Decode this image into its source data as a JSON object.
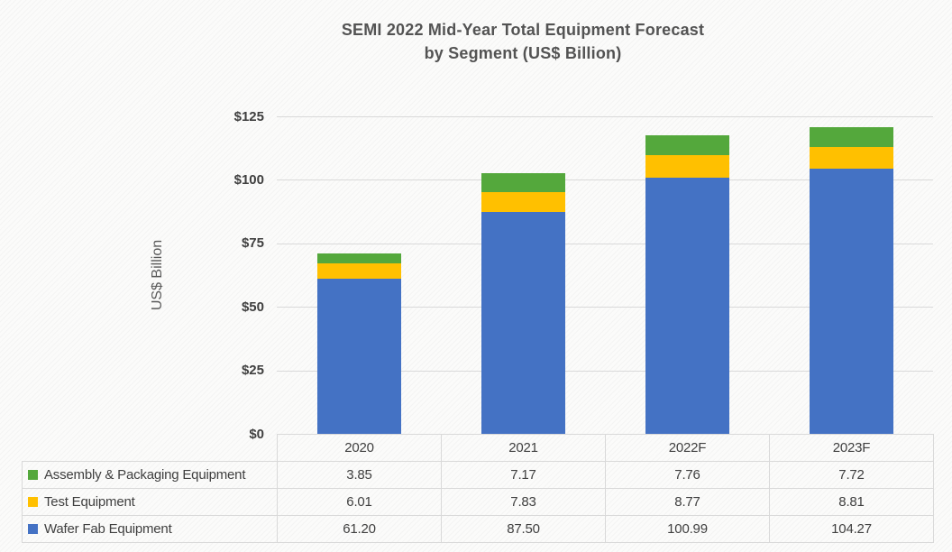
{
  "chart": {
    "title_lines": [
      "SEMI 2022 Mid-Year Total Equipment Forecast",
      "by Segment (US$ Billion)"
    ],
    "ylabel": "US$ Billion"
  },
  "chart_data": {
    "type": "bar",
    "stacked": true,
    "title": "SEMI 2022 Mid-Year Total Equipment Forecast by Segment (US$ Billion)",
    "xlabel": "",
    "ylabel": "US$ Billion",
    "categories": [
      "2020",
      "2021",
      "2022F",
      "2023F"
    ],
    "series": [
      {
        "name": "Assembly & Packaging Equipment",
        "color": "#54a83c",
        "values": [
          3.85,
          7.17,
          7.76,
          7.72
        ],
        "labels": [
          "3.85",
          "7.17",
          "7.76",
          "7.72"
        ]
      },
      {
        "name": "Test Equipment",
        "color": "#ffc000",
        "values": [
          6.01,
          7.83,
          8.77,
          8.81
        ],
        "labels": [
          "6.01",
          "7.83",
          "8.77",
          "8.81"
        ]
      },
      {
        "name": "Wafer Fab Equipment",
        "color": "#4472c4",
        "values": [
          61.2,
          87.5,
          100.99,
          104.27
        ],
        "labels": [
          "61.20",
          "87.50",
          "100.99",
          "104.27"
        ]
      }
    ],
    "stack_order_bottom_to_top": [
      "Wafer Fab Equipment",
      "Test Equipment",
      "Assembly & Packaging Equipment"
    ],
    "totals": [
      71.06,
      102.5,
      117.52,
      120.8
    ],
    "ylim": [
      0,
      125
    ],
    "yticks": [
      {
        "label": "$0",
        "value": 0
      },
      {
        "label": "$25",
        "value": 25
      },
      {
        "label": "$50",
        "value": 50
      },
      {
        "label": "$75",
        "value": 75
      },
      {
        "label": "$100",
        "value": 100
      },
      {
        "label": "$125",
        "value": 125
      }
    ],
    "grid": true,
    "gridline_color": "#d9d9d9",
    "table_border_color": "#d9d9d9",
    "legend_position": "data-table-left",
    "legend_entries": [
      "Assembly & Packaging Equipment",
      "Test Equipment",
      "Wafer Fab Equipment"
    ]
  }
}
